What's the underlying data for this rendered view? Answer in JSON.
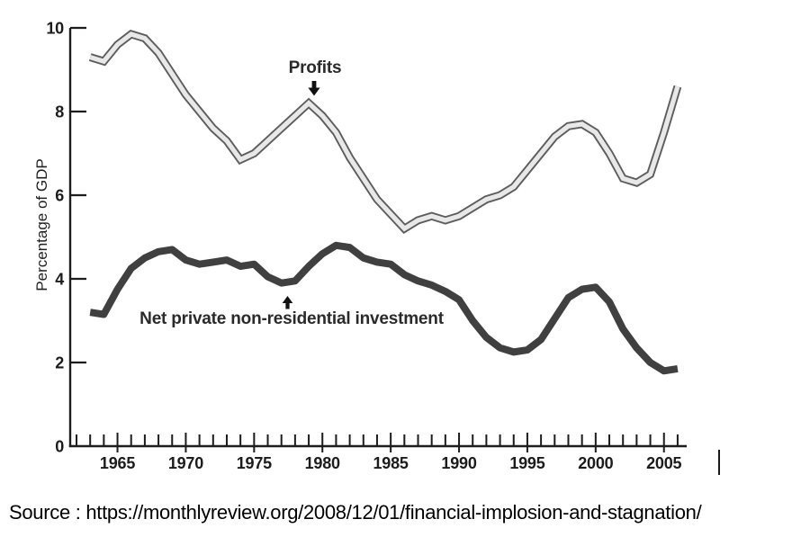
{
  "figure": {
    "source_caption": "Source : https://monthlyreview.org/2008/12/01/financial-implosion-and-stagnation/"
  },
  "chart_data": {
    "type": "line",
    "ylabel": "Percentage of GDP",
    "xlabel": "",
    "ylim": [
      0,
      10
    ],
    "xlim": [
      1962,
      2006
    ],
    "grid": false,
    "legend_position": "inline-annotations",
    "y_axis": {
      "ticks": [
        0,
        2,
        4,
        6,
        8,
        10
      ],
      "tick_labels": [
        "0",
        "2",
        "4",
        "6",
        "8",
        "10"
      ]
    },
    "x_axis": {
      "major_ticks": [
        1965,
        1970,
        1975,
        1980,
        1985,
        1990,
        1995,
        2000,
        2005
      ],
      "major_tick_labels": [
        "1965",
        "1970",
        "1975",
        "1980",
        "1985",
        "1990",
        "1995",
        "2000",
        "2005"
      ],
      "minor_tick_start": 1962,
      "minor_tick_end": 2006,
      "minor_tick_step": 1
    },
    "x": [
      1963,
      1964,
      1965,
      1966,
      1967,
      1968,
      1969,
      1970,
      1971,
      1972,
      1973,
      1974,
      1975,
      1976,
      1977,
      1978,
      1979,
      1980,
      1981,
      1982,
      1983,
      1984,
      1985,
      1986,
      1987,
      1988,
      1989,
      1990,
      1991,
      1992,
      1993,
      1994,
      1995,
      1996,
      1997,
      1998,
      1999,
      2000,
      2001,
      2002,
      2003,
      2004,
      2005,
      2006
    ],
    "series": [
      {
        "name": "Profits",
        "style": "outlined-band",
        "fill_color": "#e8e8e8",
        "edge_color": "#5d5d5d",
        "values": [
          9.3,
          9.2,
          9.6,
          9.85,
          9.75,
          9.4,
          8.9,
          8.4,
          8.0,
          7.6,
          7.3,
          6.85,
          7.0,
          7.3,
          7.6,
          7.9,
          8.2,
          7.9,
          7.5,
          6.9,
          6.4,
          5.9,
          5.55,
          5.2,
          5.4,
          5.5,
          5.4,
          5.5,
          5.7,
          5.9,
          6.0,
          6.2,
          6.6,
          7.0,
          7.4,
          7.65,
          7.7,
          7.5,
          7.0,
          6.4,
          6.3,
          6.5,
          7.5,
          8.6
        ]
      },
      {
        "name": "Net private non-residential investment",
        "style": "thick-line",
        "color": "#404040",
        "values": [
          3.2,
          3.15,
          3.75,
          4.25,
          4.5,
          4.65,
          4.7,
          4.45,
          4.35,
          4.4,
          4.45,
          4.3,
          4.35,
          4.05,
          3.9,
          3.95,
          4.3,
          4.6,
          4.8,
          4.75,
          4.5,
          4.4,
          4.35,
          4.1,
          3.95,
          3.85,
          3.7,
          3.5,
          3.0,
          2.6,
          2.35,
          2.25,
          2.3,
          2.55,
          3.05,
          3.55,
          3.75,
          3.8,
          3.45,
          2.8,
          2.35,
          2.0,
          1.8,
          1.85
        ]
      }
    ],
    "annotations": [
      {
        "text": "Profits",
        "arrow": "down",
        "target_x": 1979,
        "target_y": 8.2
      },
      {
        "text": "Net private non-residential investment",
        "arrow": "up",
        "target_x": 1977.5,
        "target_y": 3.9
      }
    ]
  }
}
